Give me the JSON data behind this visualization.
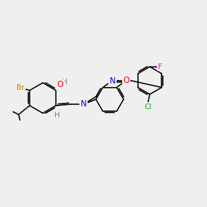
{
  "background_color": "#efefef",
  "figsize": [
    3.0,
    3.0
  ],
  "dpi": 100,
  "atom_colors": {
    "Br": "#cc7700",
    "O": "#ff0000",
    "N": "#0000ff",
    "Cl": "#00aa00",
    "F": "#ff00ff",
    "C": "#000000",
    "H": "#558888"
  },
  "bond_color": "#000000",
  "bond_width": 1.2,
  "font_size": 7.5
}
